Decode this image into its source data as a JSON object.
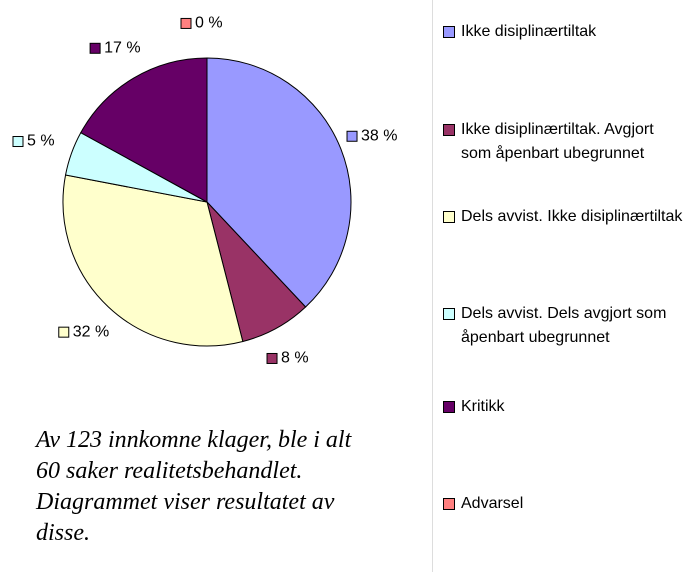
{
  "chart_data": {
    "type": "pie",
    "categories": [
      "Ikke disiplinærtiltak",
      "Ikke disiplinærtiltak. Avgjort som åpenbart ubegrunnet",
      "Dels avvist. Ikke disiplinærtiltak",
      "Dels avvist. Dels avgjort som åpenbart ubegrunnet",
      "Kritikk",
      "Advarsel"
    ],
    "values": [
      38,
      8,
      32,
      5,
      17,
      0
    ],
    "value_labels": [
      "38 %",
      "8 %",
      "32 %",
      "5 %",
      "17 %",
      "0 %"
    ],
    "colors": [
      "#9999ff",
      "#993366",
      "#ffffcc",
      "#ccffff",
      "#660066",
      "#ff8080"
    ],
    "caption": "Av 123 innkomne klager, ble i alt 60 saker realitetsbehandlet. Diagrammet viser resultatet av disse."
  }
}
